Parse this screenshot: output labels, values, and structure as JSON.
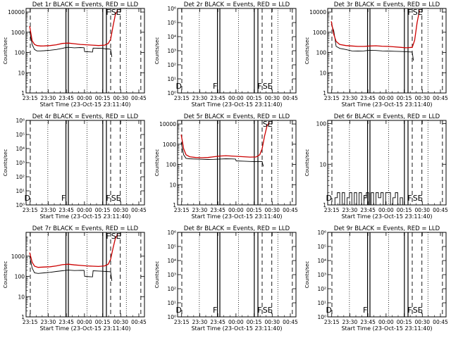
{
  "figure": {
    "xlabel": "Start Time (23-Oct-15 23:11:40)",
    "ylabel": "Counts/sec",
    "x_ticks": [
      "23:15",
      "23:30",
      "23:45",
      "00:00",
      "00:15",
      "00:30",
      "00:45"
    ],
    "x_range_minutes": [
      0,
      98
    ]
  },
  "chart_data": [
    {
      "type": "line",
      "title": "Det 1r BLACK = Events, RED = LLD",
      "y_scale": "log",
      "ylim": [
        1,
        15000
      ],
      "ytick_labels": [
        "1",
        "10",
        "100",
        "1000",
        "10000"
      ],
      "markers": [
        "F",
        "S",
        "E"
      ],
      "vlines_dashed": [
        3.5,
        70,
        78,
        95
      ],
      "vlines_dotted": [
        18,
        50.5,
        83
      ],
      "vlines_solid": [
        33,
        35,
        63.5,
        66.5
      ],
      "series": [
        {
          "name": "Events",
          "color": "#000000",
          "style": "solid",
          "x": [
            3,
            5,
            7,
            9,
            12,
            15,
            20,
            25,
            30,
            33,
            35,
            40,
            45,
            48,
            48.5,
            55,
            55.5,
            60,
            63.5,
            66,
            68,
            70,
            71
          ],
          "y": [
            1100,
            250,
            140,
            120,
            120,
            122,
            130,
            140,
            160,
            175,
            180,
            170,
            175,
            172,
            110,
            105,
            165,
            162,
            160,
            150,
            150,
            145,
            60
          ]
        },
        {
          "name": "LLD",
          "color": "#cc0000",
          "style": "solid",
          "x": [
            3,
            5,
            7,
            9,
            12,
            15,
            20,
            25,
            30,
            35,
            40,
            45,
            50,
            55,
            60,
            65,
            68,
            70,
            72,
            74,
            76
          ],
          "y": [
            2000,
            380,
            250,
            220,
            210,
            212,
            220,
            240,
            280,
            290,
            270,
            250,
            240,
            230,
            220,
            230,
            280,
            450,
            2000,
            8000,
            12000
          ]
        }
      ]
    },
    {
      "type": "line",
      "title": "Det 2r BLACK = Events, RED = LLD",
      "y_scale": "log",
      "ylim": [
        1,
        1000000
      ],
      "ytick_labels": [
        "10⁰",
        "10¹",
        "10²",
        "10³",
        "10⁴",
        "10⁵",
        "10⁶"
      ],
      "markers": [
        "D",
        "F",
        "F",
        "S",
        "E"
      ],
      "vlines_dashed": [
        3.5,
        70,
        78,
        95
      ],
      "vlines_dotted": [
        18,
        50.5,
        83
      ],
      "vlines_solid": [
        33,
        35,
        63.5,
        66.5
      ],
      "series": []
    },
    {
      "type": "line",
      "title": "Det 3r BLACK = Events, RED = LLD",
      "y_scale": "log",
      "ylim": [
        1,
        15000
      ],
      "ytick_labels": [
        "1",
        "10",
        "100",
        "1000",
        "10000"
      ],
      "markers": [
        "F",
        "S",
        "E"
      ],
      "vlines_dashed": [
        3.5,
        70,
        78,
        95
      ],
      "vlines_dotted": [
        18,
        50.5,
        83
      ],
      "vlines_solid": [
        33,
        35,
        63.5,
        66.5
      ],
      "series": [
        {
          "name": "Events",
          "color": "#000000",
          "style": "solid",
          "x": [
            3,
            5,
            7,
            10,
            15,
            20,
            25,
            30,
            33,
            35,
            40,
            45,
            50,
            55,
            60,
            63.5,
            66,
            70,
            71
          ],
          "y": [
            2500,
            1200,
            200,
            160,
            140,
            120,
            118,
            120,
            125,
            128,
            125,
            120,
            118,
            115,
            112,
            110,
            108,
            105,
            40
          ]
        },
        {
          "name": "LLD",
          "color": "#cc0000",
          "style": "solid",
          "x": [
            3,
            5,
            7,
            10,
            15,
            20,
            25,
            30,
            35,
            40,
            45,
            50,
            55,
            60,
            65,
            70,
            72,
            74,
            76
          ],
          "y": [
            3500,
            800,
            350,
            250,
            220,
            210,
            200,
            200,
            210,
            215,
            205,
            200,
            190,
            180,
            170,
            180,
            400,
            3000,
            12000
          ]
        }
      ]
    },
    {
      "type": "line",
      "title": "Det 4r BLACK = Events, RED = LLD",
      "y_scale": "log",
      "ylim": [
        1,
        1000000
      ],
      "ytick_labels": [
        "10⁰",
        "10¹",
        "10²",
        "10³",
        "10⁴",
        "10⁵",
        "10⁶"
      ],
      "markers": [
        "D",
        "F",
        "F",
        "S",
        "E"
      ],
      "vlines_dashed": [
        3.5,
        70,
        78,
        95
      ],
      "vlines_dotted": [
        18,
        50.5,
        83
      ],
      "vlines_solid": [
        33,
        35,
        63.5,
        66.5
      ],
      "series": []
    },
    {
      "type": "line",
      "title": "Det 5r BLACK = Events, RED = LLD",
      "y_scale": "log",
      "ylim": [
        1,
        15000
      ],
      "ytick_labels": [
        "1",
        "10",
        "100",
        "1000",
        "10000"
      ],
      "markers": [
        "S",
        "E"
      ],
      "vlines_dashed": [
        3.5,
        70,
        78,
        95
      ],
      "vlines_dotted": [
        18,
        50.5,
        83
      ],
      "vlines_solid": [
        33,
        35,
        63.5,
        66.5
      ],
      "series": [
        {
          "name": "Events",
          "color": "#000000",
          "style": "solid",
          "x": [
            3,
            5,
            7,
            10,
            15,
            20,
            25,
            30,
            35,
            40,
            45,
            48,
            48.5,
            55,
            60,
            63.5,
            66,
            70,
            71
          ],
          "y": [
            1200,
            300,
            200,
            190,
            185,
            180,
            175,
            178,
            185,
            190,
            188,
            185,
            150,
            145,
            140,
            138,
            140,
            138,
            80
          ]
        },
        {
          "name": "LLD",
          "color": "#cc0000",
          "style": "solid",
          "x": [
            3,
            5,
            7,
            10,
            15,
            20,
            25,
            30,
            35,
            40,
            45,
            50,
            55,
            60,
            65,
            68,
            70,
            72,
            74,
            76
          ],
          "y": [
            3000,
            600,
            300,
            240,
            220,
            215,
            220,
            240,
            260,
            270,
            260,
            250,
            240,
            230,
            235,
            300,
            600,
            2500,
            8000,
            12000
          ]
        }
      ]
    },
    {
      "type": "line",
      "title": "Det 6r BLACK = Events, RED = LLD",
      "y_scale": "log",
      "ylim": [
        1,
        120
      ],
      "ytick_labels": [
        "1",
        "10",
        "100"
      ],
      "markers": [
        "D",
        "F",
        "F",
        "S",
        "E"
      ],
      "vlines_dashed": [
        3.5,
        70,
        78,
        95
      ],
      "vlines_dotted": [
        18,
        50.5,
        83
      ],
      "vlines_solid": [
        33,
        35,
        63.5,
        66.5
      ],
      "series": [
        {
          "name": "Events",
          "color": "#000000",
          "style": "step",
          "x": [
            5,
            6,
            8,
            10,
            12,
            14,
            16,
            18,
            20,
            22,
            24,
            26,
            28,
            30,
            32,
            34,
            36,
            38,
            40,
            42,
            44,
            46,
            48,
            50,
            52,
            54,
            56,
            58,
            60,
            62
          ],
          "y": [
            1,
            1.5,
            2,
            1,
            2,
            1,
            1.5,
            2,
            1,
            2,
            1,
            2,
            1,
            1.5,
            2,
            1,
            2,
            1,
            2,
            1.5,
            2,
            1,
            2,
            2,
            1,
            1.5,
            2,
            1,
            1.5,
            1
          ]
        }
      ]
    },
    {
      "type": "line",
      "title": "Det 7r BLACK = Events, RED = LLD",
      "y_scale": "log",
      "ylim": [
        1,
        15000
      ],
      "ytick_labels": [
        "1",
        "10",
        "100",
        "1000"
      ],
      "markers": [
        "F",
        "S",
        "E"
      ],
      "vlines_dashed": [
        3.5,
        70,
        78,
        95
      ],
      "vlines_dotted": [
        18,
        50.5,
        83
      ],
      "vlines_solid": [
        33,
        35,
        63.5,
        66.5
      ],
      "series": [
        {
          "name": "Events",
          "color": "#000000",
          "style": "solid",
          "x": [
            3,
            5,
            7,
            10,
            15,
            20,
            25,
            30,
            33,
            35,
            40,
            45,
            48,
            48.5,
            55,
            55.5,
            60,
            63.5,
            66,
            70,
            71
          ],
          "y": [
            1000,
            260,
            150,
            140,
            150,
            160,
            175,
            190,
            200,
            205,
            195,
            200,
            198,
            100,
            95,
            190,
            185,
            180,
            175,
            170,
            60
          ]
        },
        {
          "name": "LLD",
          "color": "#cc0000",
          "style": "solid",
          "x": [
            3,
            5,
            7,
            10,
            15,
            20,
            25,
            30,
            35,
            40,
            45,
            50,
            55,
            60,
            65,
            68,
            70,
            72,
            74,
            76
          ],
          "y": [
            1500,
            500,
            320,
            280,
            290,
            300,
            330,
            380,
            400,
            370,
            350,
            330,
            320,
            310,
            330,
            400,
            700,
            2500,
            8000,
            12000
          ]
        }
      ]
    },
    {
      "type": "line",
      "title": "Det 8r BLACK = Events, RED = LLD",
      "y_scale": "log",
      "ylim": [
        1,
        1000000
      ],
      "ytick_labels": [
        "10⁰",
        "10¹",
        "10²",
        "10³",
        "10⁴",
        "10⁵",
        "10⁶"
      ],
      "markers": [
        "D",
        "F",
        "F",
        "S",
        "E"
      ],
      "vlines_dashed": [
        3.5,
        70,
        78,
        95
      ],
      "vlines_dotted": [
        18,
        50.5,
        83
      ],
      "vlines_solid": [
        33,
        35,
        63.5,
        66.5
      ],
      "series": []
    },
    {
      "type": "line",
      "title": "Det 9r BLACK = Events, RED = LLD",
      "y_scale": "log",
      "ylim": [
        1,
        1000000
      ],
      "ytick_labels": [
        "10⁰",
        "10¹",
        "10²",
        "10³",
        "10⁴",
        "10⁵",
        "10⁶"
      ],
      "markers": [
        "D",
        "F",
        "F",
        "S",
        "E"
      ],
      "vlines_dashed": [
        3.5,
        70,
        78,
        95
      ],
      "vlines_dotted": [
        18,
        50.5,
        83
      ],
      "vlines_solid": [
        33,
        35,
        63.5,
        66.5
      ],
      "series": []
    }
  ]
}
